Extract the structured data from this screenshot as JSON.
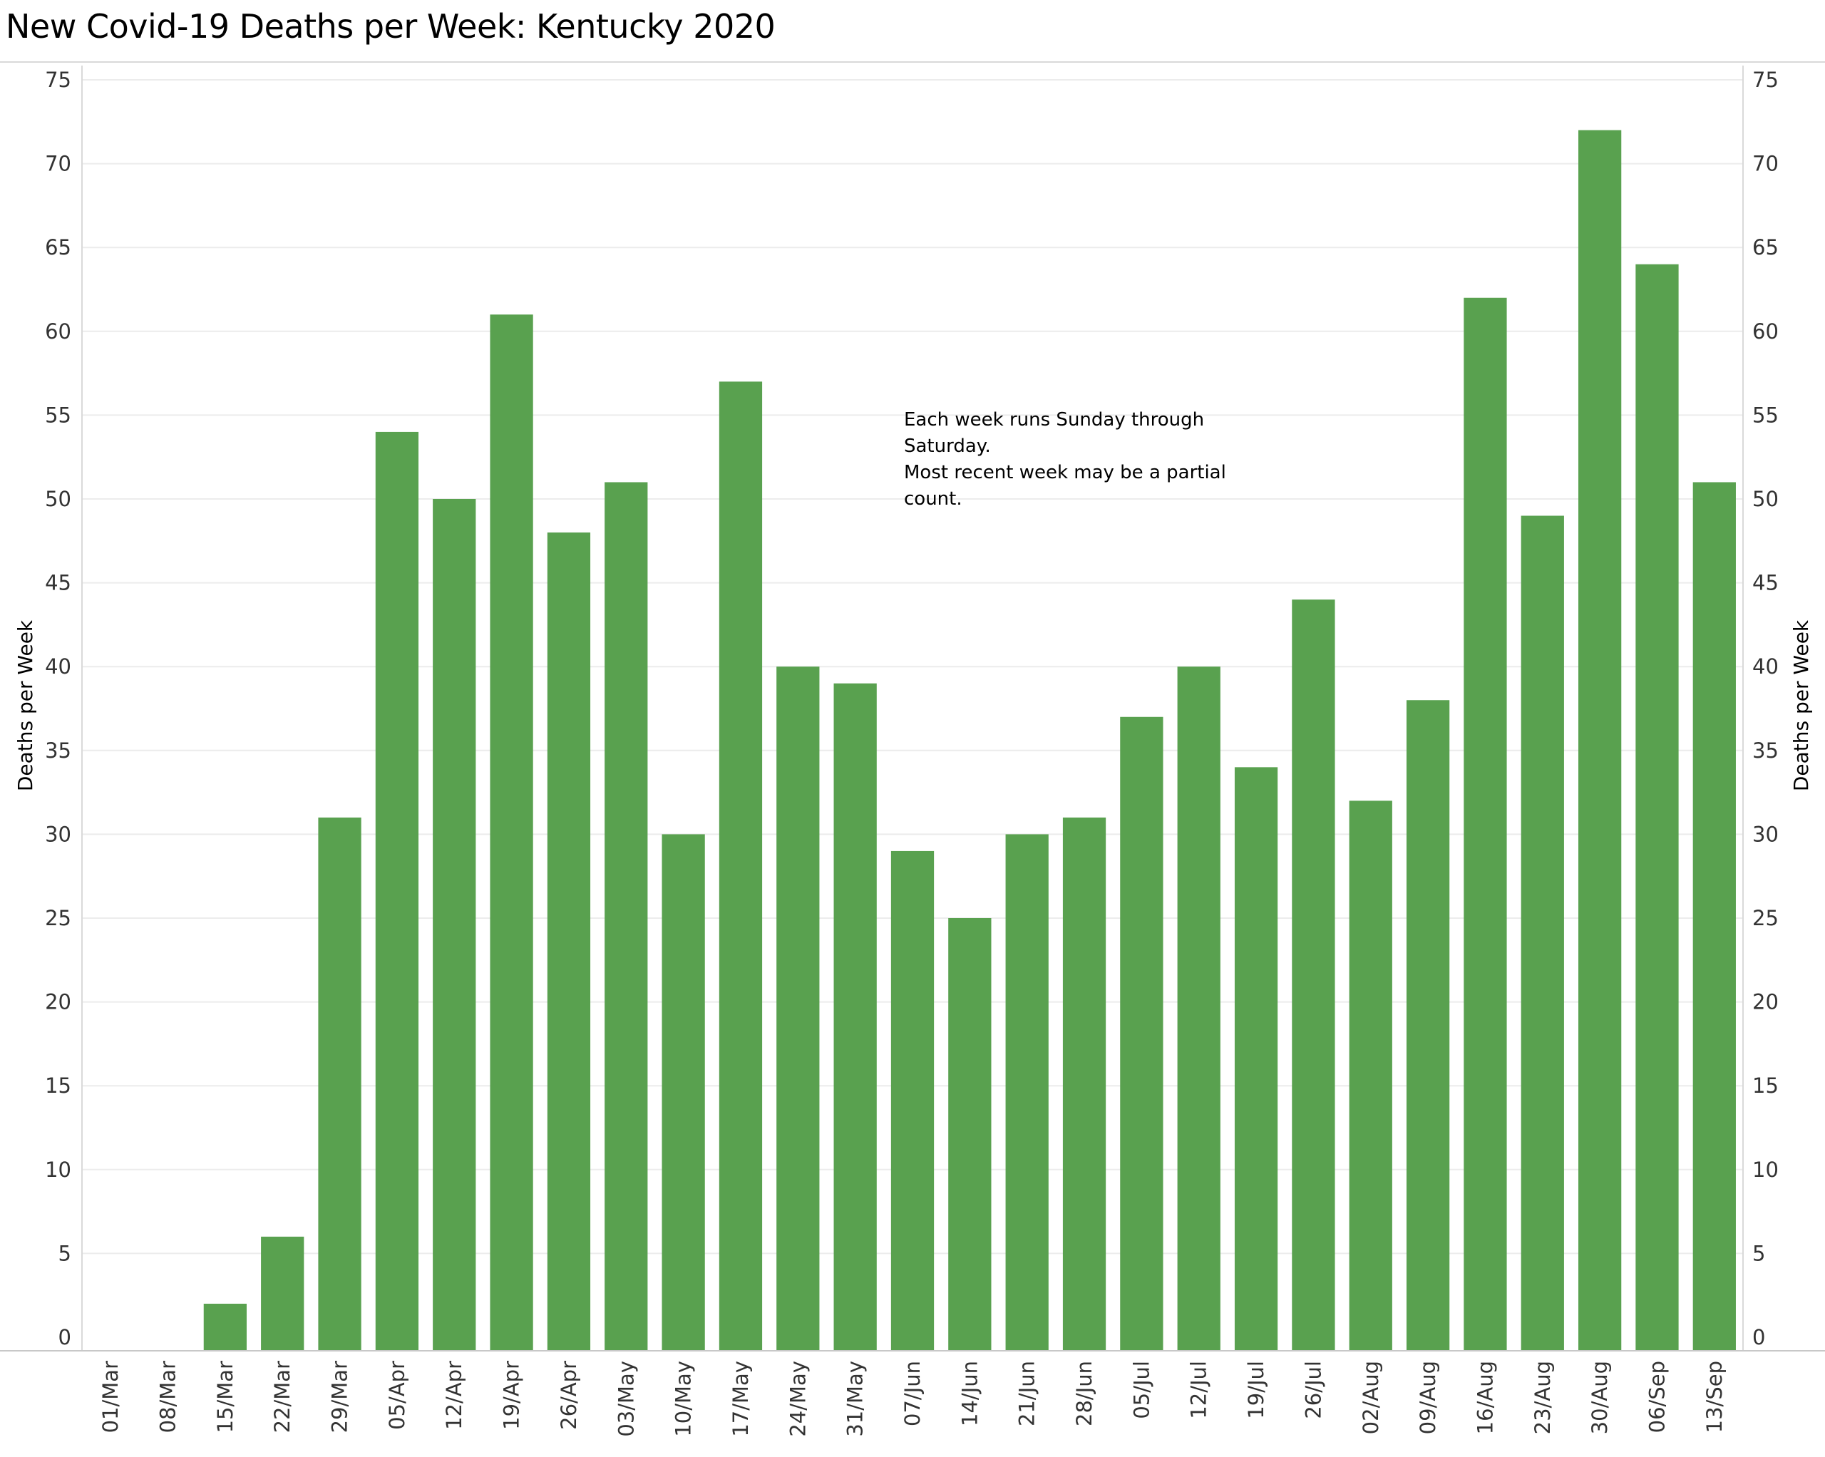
{
  "chart_data": {
    "type": "bar",
    "title": "New Covid-19 Deaths per Week:  Kentucky 2020",
    "ylabel": "Deaths per Week",
    "ylabel_right": "Deaths per Week",
    "xlabel": "",
    "ylim": [
      0,
      75
    ],
    "yticks": [
      0,
      5,
      10,
      15,
      20,
      25,
      30,
      35,
      40,
      45,
      50,
      55,
      60,
      65,
      70,
      75
    ],
    "grid": true,
    "bar_color": "#59a14f",
    "categories": [
      "01/Mar",
      "08/Mar",
      "15/Mar",
      "22/Mar",
      "29/Mar",
      "05/Apr",
      "12/Apr",
      "19/Apr",
      "26/Apr",
      "03/May",
      "10/May",
      "17/May",
      "24/May",
      "31/May",
      "07/Jun",
      "14/Jun",
      "21/Jun",
      "28/Jun",
      "05/Jul",
      "12/Jul",
      "19/Jul",
      "26/Jul",
      "02/Aug",
      "09/Aug",
      "16/Aug",
      "23/Aug",
      "30/Aug",
      "06/Sep",
      "13/Sep"
    ],
    "values": [
      0,
      0,
      2,
      6,
      31,
      54,
      50,
      61,
      48,
      51,
      30,
      57,
      40,
      39,
      29,
      25,
      30,
      31,
      37,
      40,
      34,
      44,
      32,
      38,
      62,
      49,
      72,
      64,
      51
    ],
    "annotation": [
      "Each week runs Sunday through",
      "Saturday.",
      "Most recent week may be a partial",
      "count."
    ]
  }
}
